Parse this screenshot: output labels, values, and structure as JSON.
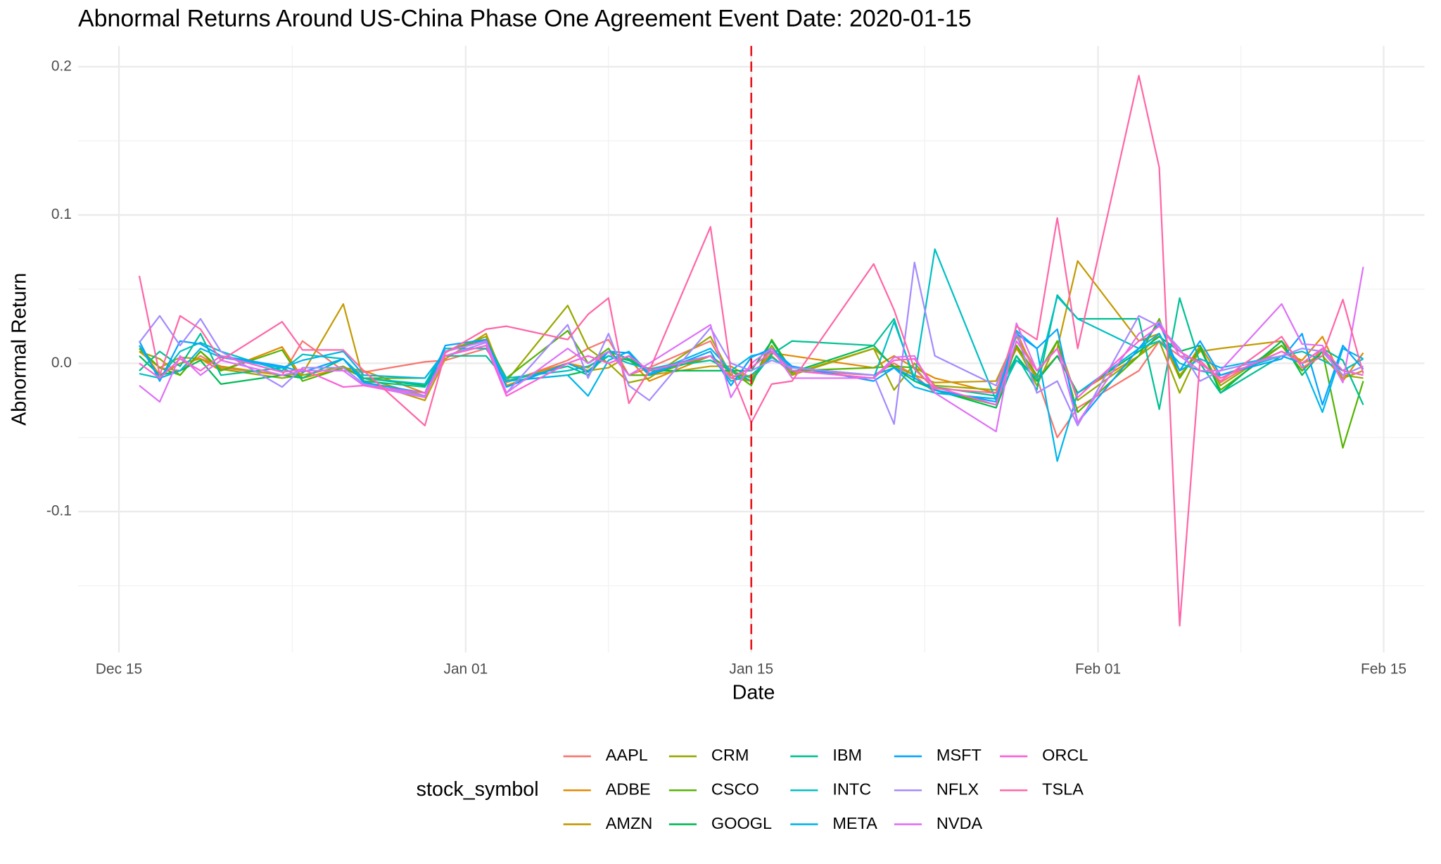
{
  "chart_data": {
    "type": "line",
    "title": "Abnormal Returns Around US-China Phase One Agreement Event Date: 2020-01-15",
    "x_label": "Date",
    "y_label": "Abnormal Return",
    "legend_title": "stock_symbol",
    "legend": "bottom",
    "grid": true,
    "vline": "Jan 15",
    "vline_color": "#e8141b",
    "xlim": [
      "Dec 13",
      "Feb 17"
    ],
    "xticks": [
      "Dec 15",
      "Jan 01",
      "Jan 15",
      "Feb 01",
      "Feb 15"
    ],
    "ylim": [
      -0.195,
      0.214
    ],
    "yticks": [
      -0.1,
      {
        "value": 0,
        "label": "0.0"
      },
      0.1,
      0.2
    ],
    "x": [
      "Dec 16",
      "Dec 17",
      "Dec 18",
      "Dec 19",
      "Dec 20",
      "Dec 23",
      "Dec 24",
      "Dec 26",
      "Dec 27",
      "Dec 30",
      "Dec 31",
      "Jan 02",
      "Jan 03",
      "Jan 06",
      "Jan 07",
      "Jan 08",
      "Jan 09",
      "Jan 10",
      "Jan 13",
      "Jan 14",
      "Jan 15",
      "Jan 16",
      "Jan 17",
      "Jan 21",
      "Jan 22",
      "Jan 23",
      "Jan 24",
      "Jan 27",
      "Jan 28",
      "Jan 29",
      "Jan 30",
      "Jan 31",
      "Feb 03",
      "Feb 04",
      "Feb 05",
      "Feb 06",
      "Feb 07",
      "Feb 10",
      "Feb 11",
      "Feb 12",
      "Feb 13",
      "Feb 14"
    ],
    "series": [
      {
        "name": "AAPL",
        "color": "#F8766D",
        "values": [
          0.01,
          -0.003,
          -0.005,
          0.005,
          -0.003,
          -0.008,
          0.015,
          -0.005,
          -0.006,
          0.001,
          0.002,
          0.01,
          -0.013,
          0.002,
          0.01,
          0.016,
          -0.008,
          -0.003,
          0.015,
          -0.01,
          -0.012,
          0.01,
          -0.005,
          -0.008,
          0.0,
          -0.008,
          -0.02,
          -0.024,
          0.022,
          -0.01,
          -0.05,
          -0.03,
          -0.005,
          0.015,
          0.005,
          0.002,
          -0.013,
          0.012,
          -0.005,
          0.01,
          -0.01,
          -0.005
        ]
      },
      {
        "name": "ADBE",
        "color": "#E38900",
        "values": [
          0.012,
          -0.008,
          0.0,
          0.003,
          -0.005,
          0.011,
          -0.01,
          -0.003,
          -0.005,
          -0.02,
          0.005,
          0.012,
          -0.012,
          0.0,
          -0.003,
          0.008,
          0.003,
          -0.012,
          0.005,
          -0.005,
          -0.01,
          0.007,
          0.005,
          -0.003,
          0.005,
          -0.003,
          -0.01,
          -0.02,
          0.01,
          -0.01,
          0.005,
          -0.02,
          0.005,
          0.02,
          -0.01,
          0.012,
          -0.01,
          0.008,
          0.002,
          0.018,
          -0.012,
          0.007
        ]
      },
      {
        "name": "AMZN",
        "color": "#C49A00",
        "values": [
          0.008,
          -0.003,
          0.004,
          0.003,
          -0.002,
          -0.008,
          -0.007,
          0.04,
          -0.012,
          -0.025,
          0.003,
          0.02,
          -0.015,
          0.0,
          -0.005,
          -0.003,
          0.005,
          -0.008,
          -0.002,
          -0.002,
          -0.01,
          0.005,
          -0.007,
          0.01,
          -0.002,
          -0.008,
          -0.013,
          -0.012,
          0.018,
          -0.005,
          0.01,
          0.069,
          0.015,
          0.02,
          -0.008,
          0.008,
          0.01,
          0.015,
          0.0,
          0.005,
          -0.01,
          -0.005
        ]
      },
      {
        "name": "CRM",
        "color": "#99A800",
        "values": [
          0.008,
          0.003,
          -0.008,
          0.008,
          -0.004,
          -0.01,
          -0.008,
          -0.002,
          -0.01,
          -0.022,
          0.008,
          0.018,
          -0.012,
          0.039,
          0.01,
          0.0,
          -0.013,
          -0.01,
          0.018,
          -0.008,
          -0.012,
          0.012,
          -0.008,
          0.01,
          -0.018,
          0.0,
          -0.015,
          -0.018,
          0.012,
          -0.015,
          0.015,
          -0.025,
          0.005,
          0.015,
          -0.02,
          0.01,
          -0.015,
          0.012,
          -0.005,
          0.008,
          -0.008,
          -0.01
        ]
      },
      {
        "name": "CSCO",
        "color": "#53B400",
        "values": [
          0.01,
          -0.003,
          -0.008,
          0.008,
          -0.005,
          0.009,
          -0.012,
          -0.003,
          -0.01,
          -0.01,
          0.008,
          0.015,
          -0.01,
          0.022,
          0.0,
          0.01,
          -0.008,
          -0.008,
          0.005,
          -0.005,
          -0.015,
          0.016,
          -0.005,
          -0.003,
          -0.002,
          -0.003,
          -0.018,
          -0.028,
          0.012,
          -0.008,
          0.015,
          -0.033,
          0.005,
          0.03,
          -0.01,
          0.01,
          -0.018,
          0.012,
          -0.005,
          0.008,
          -0.057,
          -0.012
        ]
      },
      {
        "name": "GOOGL",
        "color": "#00BC56",
        "values": [
          0.005,
          -0.008,
          -0.005,
          0.002,
          -0.014,
          -0.008,
          -0.01,
          0.003,
          -0.01,
          -0.015,
          0.008,
          0.016,
          -0.012,
          -0.008,
          -0.005,
          0.005,
          0.002,
          -0.005,
          -0.005,
          -0.005,
          -0.005,
          0.015,
          -0.006,
          0.012,
          -0.003,
          -0.012,
          -0.018,
          -0.03,
          0.005,
          -0.012,
          0.005,
          -0.02,
          0.008,
          0.018,
          0.008,
          0.012,
          -0.02,
          0.015,
          -0.008,
          0.008,
          -0.005,
          -0.008
        ]
      },
      {
        "name": "IBM",
        "color": "#00C094",
        "values": [
          -0.005,
          0.008,
          -0.002,
          0.02,
          -0.008,
          -0.003,
          -0.01,
          0.003,
          -0.012,
          -0.016,
          0.005,
          0.005,
          -0.012,
          -0.002,
          -0.008,
          0.008,
          0.003,
          -0.004,
          0.002,
          -0.005,
          -0.012,
          0.006,
          0.015,
          0.012,
          0.03,
          -0.012,
          -0.016,
          -0.022,
          0.005,
          -0.018,
          0.046,
          0.03,
          0.03,
          -0.031,
          0.044,
          0.0,
          -0.02,
          0.005,
          0.0,
          0.01,
          0.002,
          -0.028
        ]
      },
      {
        "name": "INTC",
        "color": "#00BFC4",
        "values": [
          -0.007,
          -0.01,
          0.008,
          0.014,
          0.008,
          -0.005,
          0.006,
          0.003,
          -0.01,
          -0.014,
          0.01,
          0.01,
          -0.01,
          -0.005,
          -0.002,
          0.005,
          0.0,
          -0.004,
          0.005,
          -0.012,
          -0.008,
          0.004,
          -0.005,
          -0.01,
          0.028,
          -0.01,
          0.077,
          -0.025,
          0.002,
          -0.01,
          0.045,
          0.03,
          0.01,
          0.015,
          0.0,
          -0.005,
          -0.008,
          0.005,
          0.008,
          0.002,
          -0.005,
          0.003
        ]
      },
      {
        "name": "META",
        "color": "#00B6EB",
        "values": [
          0.012,
          -0.01,
          -0.005,
          0.01,
          0.004,
          -0.003,
          0.002,
          0.008,
          -0.008,
          -0.01,
          0.008,
          0.015,
          -0.012,
          -0.008,
          -0.022,
          0.002,
          0.008,
          -0.007,
          0.01,
          -0.005,
          0.005,
          0.008,
          -0.003,
          -0.008,
          -0.003,
          -0.016,
          -0.02,
          -0.024,
          0.022,
          0.01,
          -0.066,
          -0.02,
          0.01,
          0.02,
          -0.005,
          0.003,
          -0.003,
          0.005,
          0.0,
          -0.033,
          0.01,
          0.003
        ]
      },
      {
        "name": "MSFT",
        "color": "#06A4FF",
        "values": [
          0.015,
          -0.012,
          0.015,
          0.013,
          0.005,
          -0.002,
          -0.006,
          0.003,
          -0.013,
          -0.02,
          0.012,
          0.016,
          -0.016,
          0.0,
          -0.006,
          0.008,
          0.007,
          -0.008,
          0.008,
          -0.015,
          0.004,
          0.01,
          -0.002,
          -0.012,
          -0.003,
          -0.01,
          -0.018,
          -0.026,
          0.02,
          0.01,
          0.023,
          -0.04,
          0.01,
          0.027,
          -0.005,
          0.015,
          -0.008,
          0.003,
          0.02,
          -0.028,
          0.012,
          -0.004
        ]
      },
      {
        "name": "NFLX",
        "color": "#A58AFF",
        "values": [
          0.014,
          0.032,
          0.012,
          0.03,
          0.008,
          -0.016,
          -0.003,
          -0.003,
          -0.014,
          -0.022,
          0.005,
          0.014,
          -0.02,
          0.026,
          -0.01,
          0.02,
          -0.015,
          -0.025,
          0.024,
          0.0,
          -0.005,
          0.002,
          -0.003,
          -0.008,
          -0.041,
          0.068,
          0.005,
          -0.015,
          0.02,
          -0.02,
          -0.012,
          -0.042,
          0.032,
          0.025,
          0.01,
          -0.012,
          -0.005,
          0.005,
          0.01,
          0.008,
          -0.008,
          -0.002
        ]
      },
      {
        "name": "NVDA",
        "color": "#DF70F8",
        "values": [
          -0.015,
          -0.026,
          0.005,
          -0.008,
          0.002,
          -0.008,
          -0.005,
          -0.005,
          -0.015,
          -0.023,
          0.008,
          0.015,
          -0.02,
          0.01,
          0.0,
          0.008,
          -0.008,
          0.0,
          0.026,
          -0.023,
          0.0,
          0.01,
          -0.01,
          -0.01,
          0.004,
          0.005,
          -0.02,
          -0.046,
          0.027,
          -0.005,
          0.01,
          -0.04,
          0.02,
          0.028,
          0.005,
          -0.005,
          -0.005,
          0.04,
          0.013,
          0.012,
          -0.013,
          0.065
        ]
      },
      {
        "name": "ORCL",
        "color": "#FB61D7",
        "values": [
          0.0,
          -0.01,
          0.003,
          -0.005,
          0.005,
          -0.006,
          -0.004,
          -0.016,
          -0.015,
          -0.02,
          0.005,
          0.012,
          -0.022,
          0.0,
          0.005,
          0.0,
          0.005,
          -0.005,
          0.005,
          -0.01,
          -0.003,
          0.008,
          -0.005,
          -0.01,
          0.002,
          0.003,
          -0.016,
          -0.028,
          0.015,
          -0.005,
          0.01,
          -0.023,
          0.015,
          0.025,
          0.008,
          0.0,
          -0.01,
          0.008,
          0.0,
          0.01,
          -0.005,
          -0.008
        ]
      },
      {
        "name": "TSLA",
        "color": "#FF66A8",
        "values": [
          0.059,
          -0.008,
          0.032,
          0.023,
          0.002,
          0.028,
          0.009,
          0.009,
          -0.005,
          -0.042,
          0.007,
          0.023,
          0.025,
          0.016,
          0.033,
          0.044,
          -0.027,
          -0.005,
          0.092,
          -0.005,
          -0.04,
          -0.014,
          -0.012,
          0.067,
          0.036,
          -0.004,
          -0.017,
          -0.02,
          0.025,
          0.016,
          0.098,
          0.01,
          0.194,
          0.132,
          -0.177,
          0.002,
          -0.012,
          0.018,
          -0.003,
          0.005,
          0.043,
          -0.007
        ]
      }
    ]
  }
}
